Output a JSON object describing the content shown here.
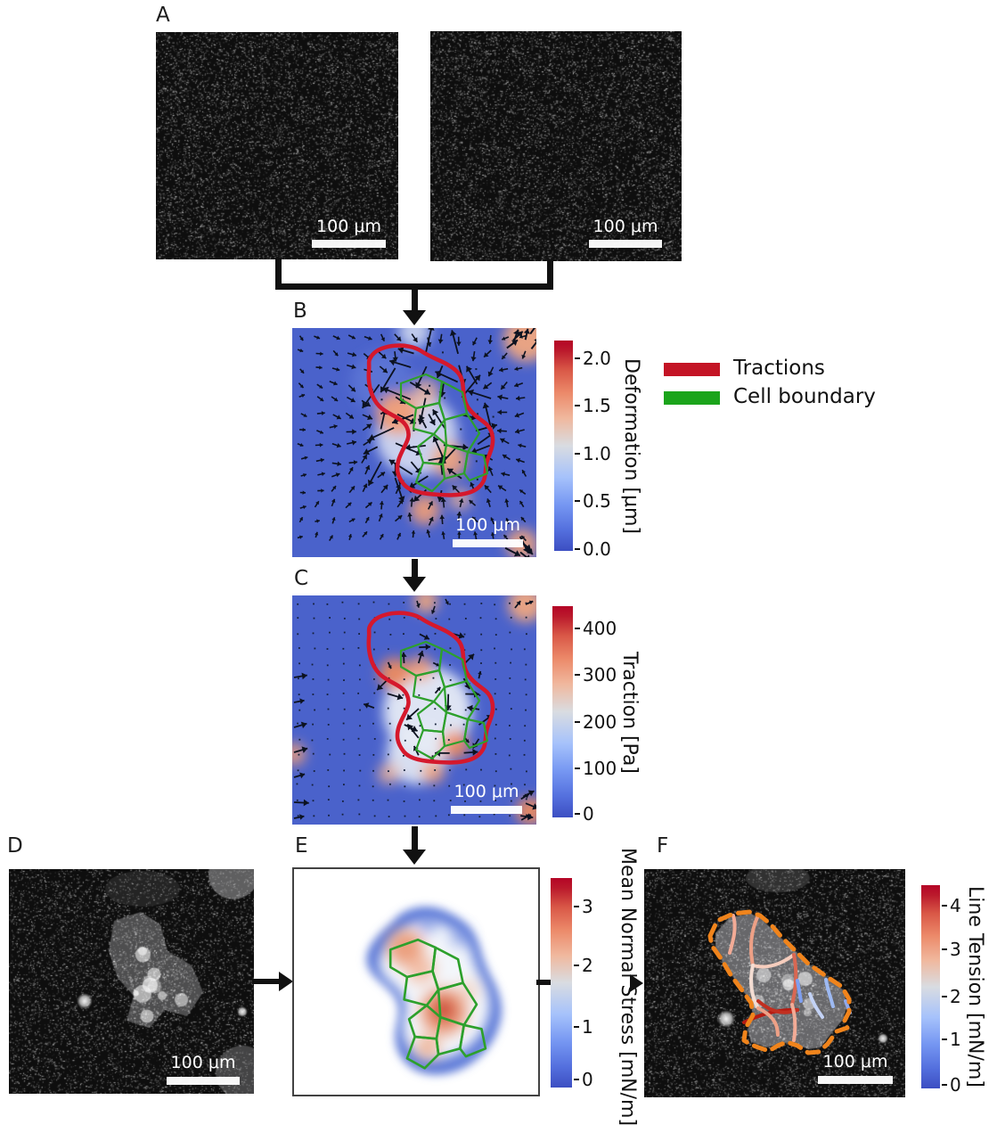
{
  "panels": {
    "a": {
      "label": "A",
      "image1": {
        "scale_bar": "100 μm"
      },
      "image2": {
        "scale_bar": "100 μm"
      }
    },
    "b": {
      "label": "B",
      "scale_bar": "100 μm",
      "colorbar": {
        "title": "Deformation [μm]",
        "ticks": [
          "2.0",
          "1.5",
          "1.0",
          "0.5",
          "0.0"
        ]
      }
    },
    "c": {
      "label": "C",
      "scale_bar": "100 μm",
      "colorbar": {
        "title": "Traction [Pa]",
        "ticks": [
          "400",
          "300",
          "200",
          "100",
          "0"
        ]
      }
    },
    "d": {
      "label": "D",
      "scale_bar": "100 μm"
    },
    "e": {
      "label": "E",
      "colorbar": {
        "title": "Mean Normal Stress [mN/m]",
        "ticks": [
          "3",
          "2",
          "1",
          "0"
        ]
      }
    },
    "f": {
      "label": "F",
      "scale_bar": "100 μm",
      "colorbar": {
        "title": "Line Tension [mN/m]",
        "ticks": [
          "4",
          "3",
          "2",
          "1",
          "0"
        ]
      }
    }
  },
  "legend": {
    "items": [
      {
        "label": "Tractions",
        "color": "#c41425"
      },
      {
        "label": "Cell boundary",
        "color": "#1ba41b"
      }
    ]
  },
  "colors": {
    "colormap_low": "#3c4ec2",
    "colormap_mid": "#d9dce1",
    "colormap_high": "#b40426",
    "heatmap_background": "#4a62cb",
    "traction_boundary_red": "#d5182c",
    "cell_boundary_green": "#2da02c",
    "colony_outline_orange": "#f0841c",
    "flow_arrow_black": "#111111",
    "scale_bar_white": "#f5f5f4"
  }
}
